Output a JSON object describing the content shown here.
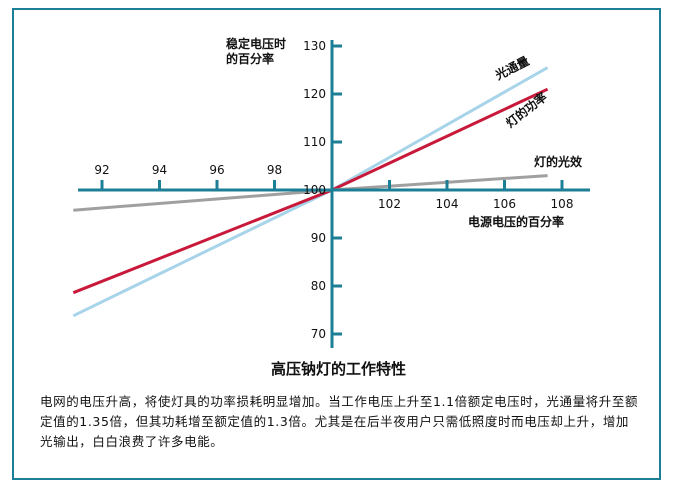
{
  "chart_data": {
    "type": "line",
    "title": "高压钠灯的工作特性",
    "xlabel": "电源电压的百分率",
    "ylabel_lines": [
      "稳定电压时",
      "的百分率"
    ],
    "xlim": [
      91,
      109
    ],
    "ylim": [
      70,
      131
    ],
    "x_ticks_left": [
      92,
      94,
      96,
      98
    ],
    "x_ticks_right": [
      102,
      104,
      106,
      108
    ],
    "y_ticks_upper": [
      100,
      110,
      120,
      130
    ],
    "y_ticks_lower": [
      70,
      80,
      90
    ],
    "series": [
      {
        "name": "光通量",
        "color": "#a8d4ea",
        "x": [
          91,
          100,
          107.5
        ],
        "y": [
          73.8,
          100,
          125.5
        ]
      },
      {
        "name": "灯的功率",
        "color": "#c8193b",
        "x": [
          91,
          100,
          107.5
        ],
        "y": [
          78.6,
          100,
          121
        ]
      },
      {
        "name": "灯的光效",
        "color": "#a0a0a0",
        "x": [
          91,
          100,
          107.5
        ],
        "y": [
          95.8,
          100,
          103
        ]
      }
    ]
  },
  "caption": {
    "body": "电网的电压升高，将使灯具的功率损耗明显增加。当工作电压上升至1.1倍额定电压时，光通量将升至额定值的1.35倍，但其功耗增至额定值的1.3倍。尤其是在后半夜用户只需低照度时而电压却上升，增加光输出，白白浪费了许多电能。"
  },
  "colors": {
    "axis": "#1c7f95",
    "frame": "#1c7f95"
  }
}
